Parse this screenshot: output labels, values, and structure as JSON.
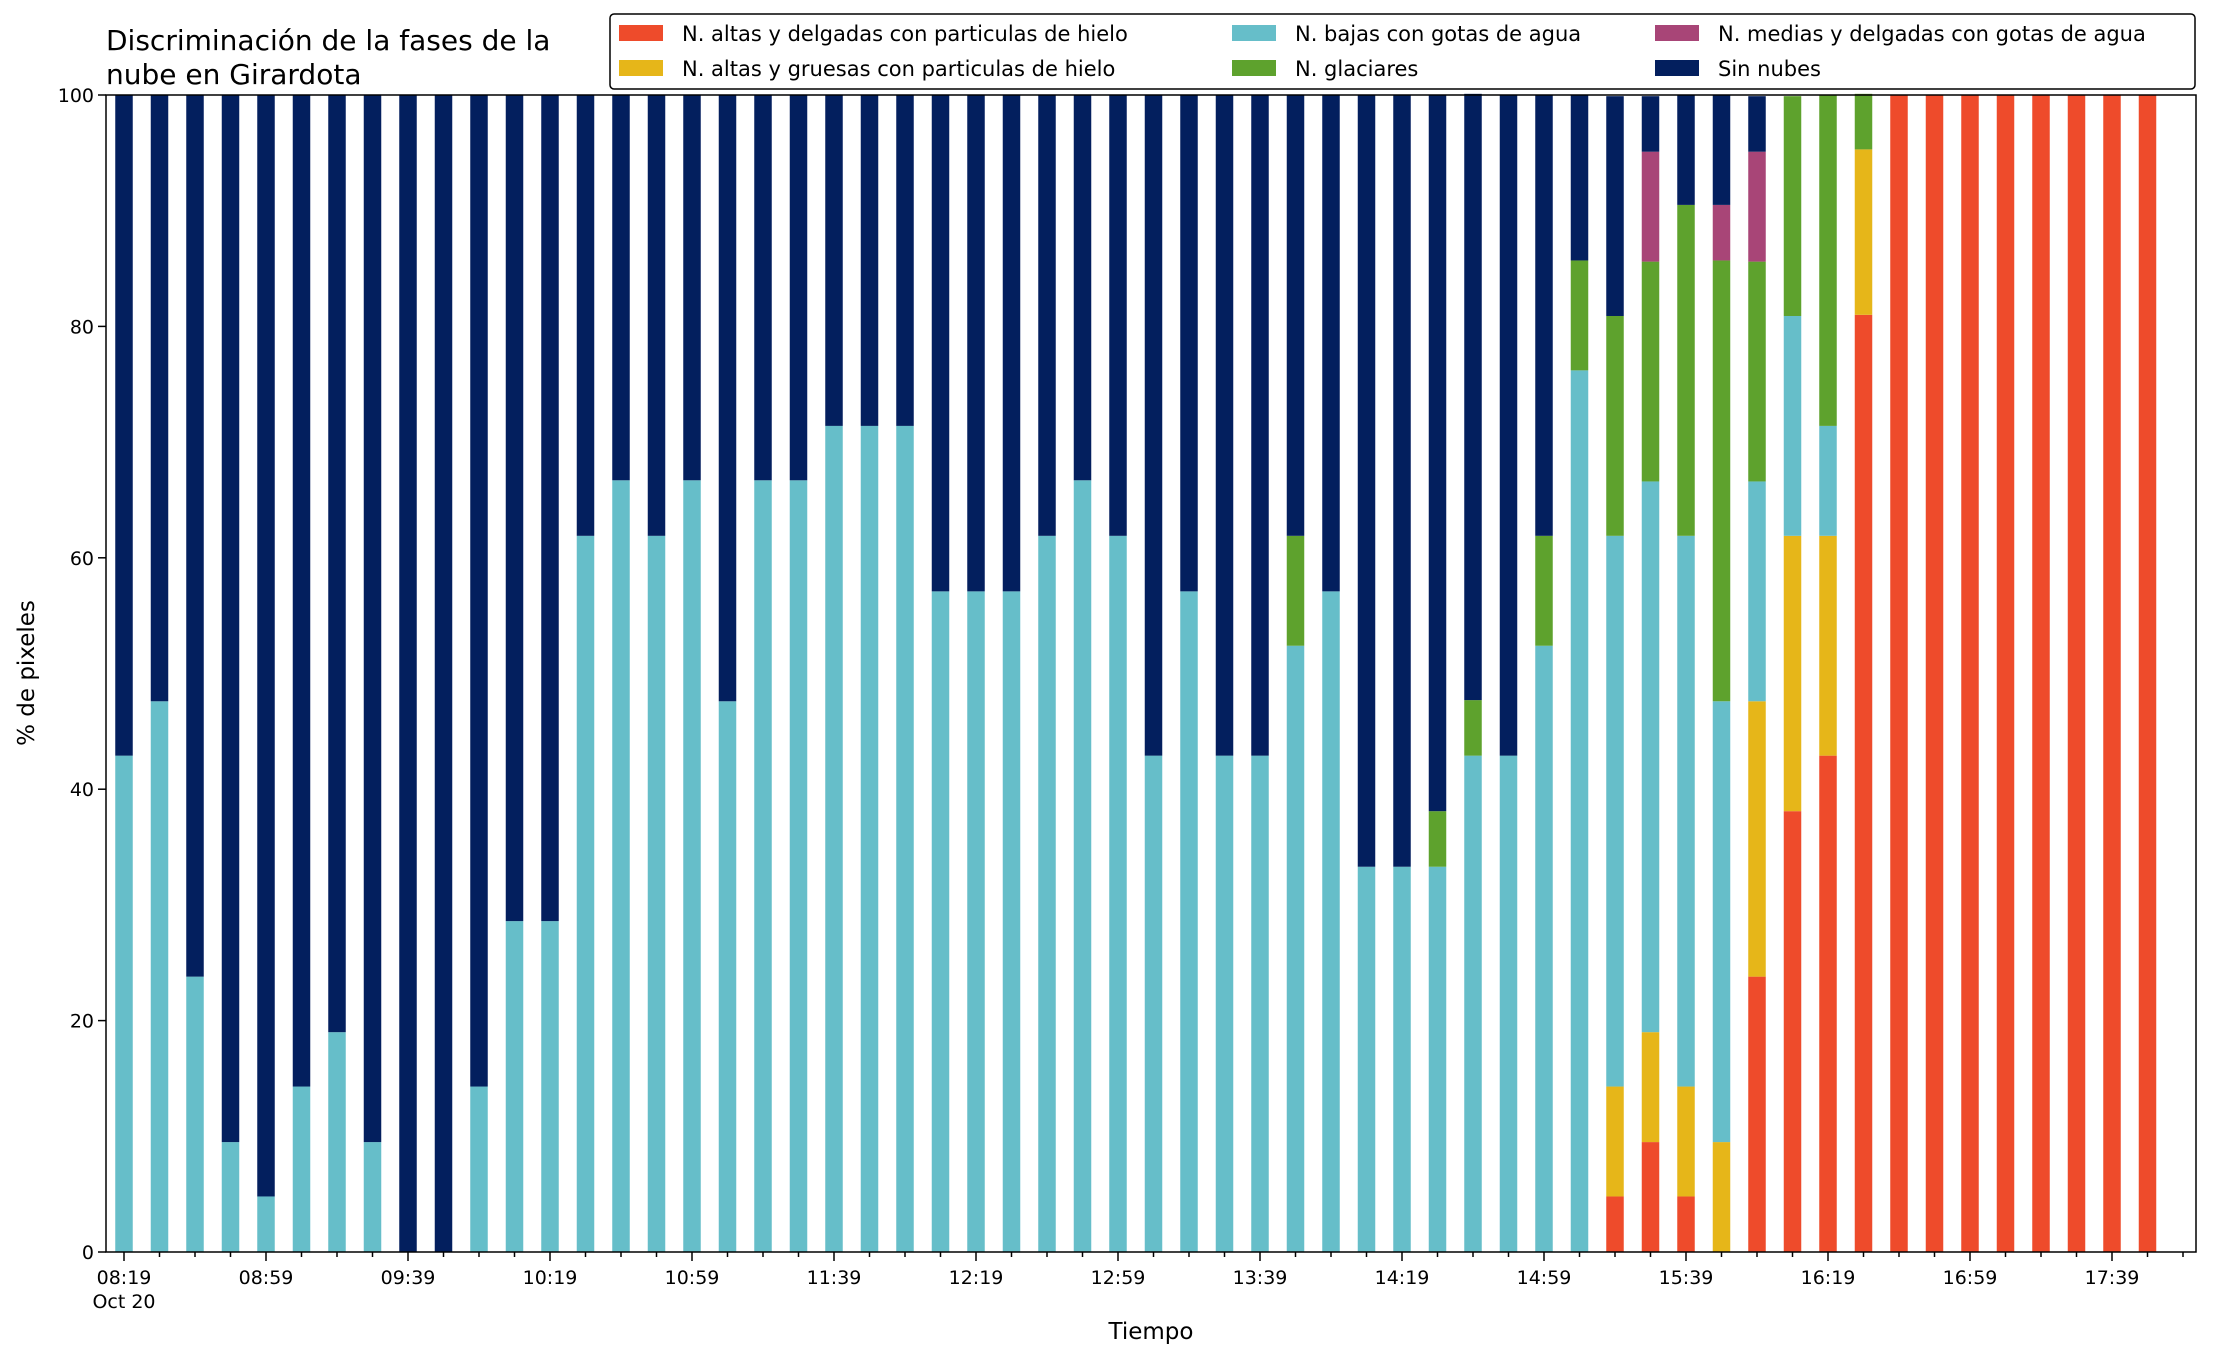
{
  "chart_data": {
    "type": "bar",
    "stacked": true,
    "title_lines": [
      "Discriminación de la fases de la",
      "nube en Girardota"
    ],
    "xlabel": "Tiempo",
    "ylabel": "% de pixeles",
    "ylim": [
      0,
      100
    ],
    "yticks": [
      0,
      20,
      40,
      60,
      80,
      100
    ],
    "xtick_labels": [
      "08:19",
      "08:59",
      "09:39",
      "10:19",
      "10:59",
      "11:39",
      "12:19",
      "12:59",
      "13:39",
      "14:19",
      "14:59",
      "15:39",
      "16:19",
      "16:59",
      "17:39"
    ],
    "xtick_sublabel": "Oct 20",
    "grid": false,
    "legend_position": "top-right",
    "categories": [
      "08:19",
      "08:29",
      "08:39",
      "08:49",
      "08:59",
      "09:09",
      "09:19",
      "09:29",
      "09:39",
      "09:49",
      "09:59",
      "10:09",
      "10:19",
      "10:29",
      "10:39",
      "10:49",
      "10:59",
      "11:09",
      "11:19",
      "11:29",
      "11:39",
      "11:49",
      "11:59",
      "12:09",
      "12:19",
      "12:29",
      "12:39",
      "12:49",
      "12:59",
      "13:09",
      "13:19",
      "13:29",
      "13:39",
      "13:49",
      "13:59",
      "14:09",
      "14:19",
      "14:29",
      "14:39",
      "14:49",
      "14:59",
      "15:09",
      "15:19",
      "15:29",
      "15:39",
      "15:49",
      "15:59",
      "16:09",
      "16:19",
      "16:29",
      "16:39",
      "16:49",
      "16:59",
      "17:09",
      "17:19",
      "17:29",
      "17:39",
      "17:49"
    ],
    "series": [
      {
        "name": "N. altas y delgadas con particulas de hielo",
        "color": "#ee4b2b",
        "values": [
          0,
          0,
          0,
          0,
          0,
          0,
          0,
          0,
          0,
          0,
          0,
          0,
          0,
          0,
          0,
          0,
          0,
          0,
          0,
          0,
          0,
          0,
          0,
          0,
          0,
          0,
          0,
          0,
          0,
          0,
          0,
          0,
          0,
          0,
          0,
          0,
          0,
          0,
          0,
          0,
          0,
          0,
          4.8,
          9.5,
          4.8,
          0,
          23.8,
          38.1,
          42.9,
          81,
          100,
          100,
          100,
          100,
          100,
          100,
          100,
          100
        ]
      },
      {
        "name": "N. altas y gruesas con particulas de hielo",
        "color": "#e6b619",
        "values": [
          0,
          0,
          0,
          0,
          0,
          0,
          0,
          0,
          0,
          0,
          0,
          0,
          0,
          0,
          0,
          0,
          0,
          0,
          0,
          0,
          0,
          0,
          0,
          0,
          0,
          0,
          0,
          0,
          0,
          0,
          0,
          0,
          0,
          0,
          0,
          0,
          0,
          0,
          0,
          0,
          0,
          0,
          9.5,
          9.5,
          9.5,
          9.5,
          23.8,
          23.8,
          19,
          14.3,
          0,
          0,
          0,
          0,
          0,
          0,
          0,
          0
        ]
      },
      {
        "name": "N. bajas con gotas de agua",
        "color": "#66bec9",
        "values": [
          42.9,
          47.6,
          23.8,
          9.5,
          4.8,
          14.3,
          19,
          9.5,
          0,
          0,
          14.3,
          28.6,
          28.6,
          61.9,
          66.7,
          61.9,
          66.7,
          47.6,
          66.7,
          66.7,
          71.4,
          71.4,
          71.4,
          57.1,
          57.1,
          57.1,
          61.9,
          66.7,
          61.9,
          42.9,
          57.1,
          42.9,
          42.9,
          52.4,
          57.1,
          33.3,
          33.3,
          33.3,
          42.9,
          42.9,
          52.4,
          76.2,
          47.6,
          47.6,
          47.6,
          38.1,
          19,
          19,
          9.5,
          0,
          0,
          0,
          0,
          0,
          0,
          0,
          0,
          0
        ]
      },
      {
        "name": "N. glaciares",
        "color": "#5ea22d",
        "values": [
          0,
          0,
          0,
          0,
          0,
          0,
          0,
          0,
          0,
          0,
          0,
          0,
          0,
          0,
          0,
          0,
          0,
          0,
          0,
          0,
          0,
          0,
          0,
          0,
          0,
          0,
          0,
          0,
          0,
          0,
          0,
          0,
          0,
          9.5,
          0,
          0,
          0,
          4.8,
          4.8,
          0,
          9.5,
          9.5,
          19,
          19,
          28.6,
          38.1,
          19,
          19,
          28.6,
          4.8,
          0,
          0,
          0,
          0,
          0,
          0,
          0,
          0
        ]
      },
      {
        "name": "N. medias y delgadas con gotas de agua",
        "color": "#a84577",
        "values": [
          0,
          0,
          0,
          0,
          0,
          0,
          0,
          0,
          0,
          0,
          0,
          0,
          0,
          0,
          0,
          0,
          0,
          0,
          0,
          0,
          0,
          0,
          0,
          0,
          0,
          0,
          0,
          0,
          0,
          0,
          0,
          0,
          0,
          0,
          0,
          0,
          0,
          0,
          0,
          0,
          0,
          0,
          0,
          9.5,
          0,
          4.8,
          9.5,
          0,
          0,
          0,
          0,
          0,
          0,
          0,
          0,
          0,
          0,
          0
        ]
      },
      {
        "name": "Sin nubes",
        "color": "#031f5e",
        "values": [
          57.1,
          52.4,
          76.2,
          90.5,
          95.2,
          85.7,
          81,
          90.5,
          100,
          100,
          85.7,
          71.4,
          71.4,
          38.1,
          33.3,
          38.1,
          33.3,
          52.4,
          33.3,
          33.3,
          28.6,
          28.6,
          28.6,
          42.9,
          42.9,
          42.9,
          38.1,
          33.3,
          38.1,
          57.1,
          42.9,
          57.1,
          57.1,
          38.1,
          42.9,
          66.7,
          66.7,
          61.9,
          52.4,
          57.1,
          38.1,
          14.3,
          19,
          4.8,
          9.5,
          9.5,
          4.8,
          0,
          0,
          0,
          0,
          0,
          0,
          0,
          0,
          0,
          0,
          0
        ]
      }
    ],
    "legend_layout": [
      [
        0,
        2,
        4
      ],
      [
        1,
        3,
        5
      ]
    ]
  }
}
